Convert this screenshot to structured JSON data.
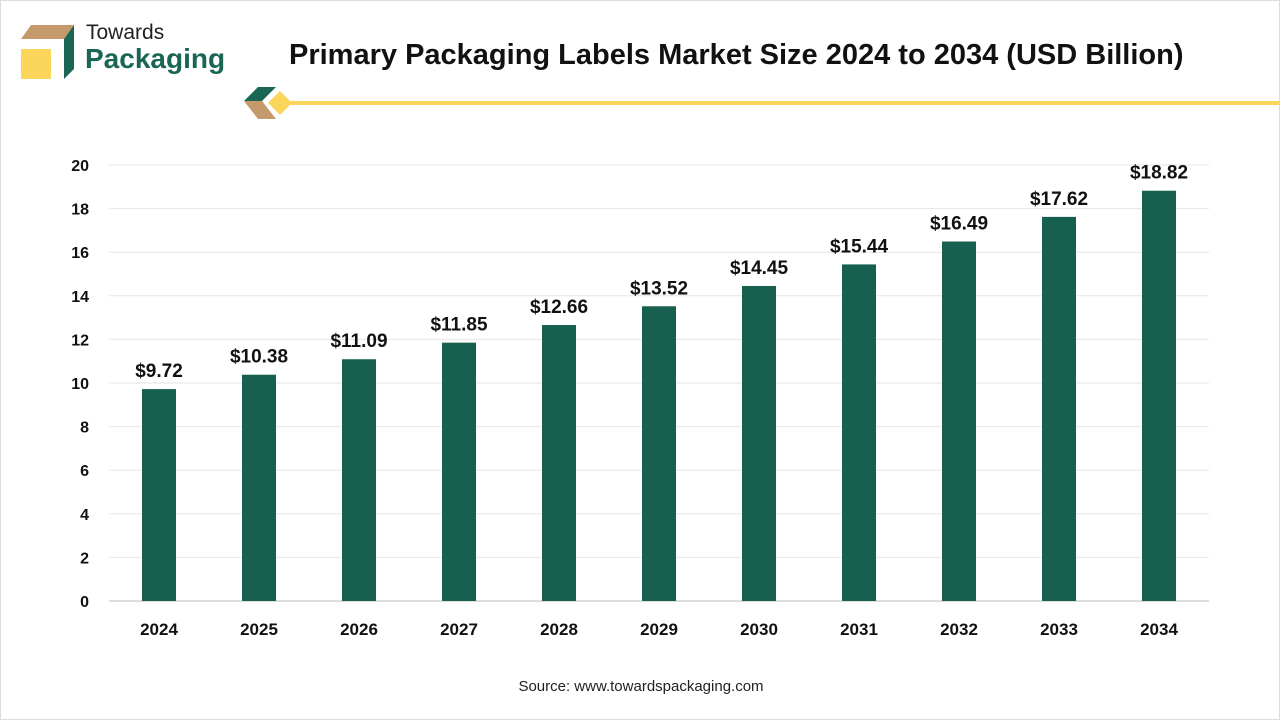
{
  "brand": {
    "line1": "Towards",
    "line2": "Packaging",
    "colors": {
      "green": "#1a6655",
      "tan": "#c49a6c",
      "yellow": "#fcd55b"
    }
  },
  "title": "Primary Packaging Labels Market Size 2024 to 2034 (USD Billion)",
  "source": "Source: www.towardspackaging.com",
  "chart_data": {
    "type": "bar",
    "title": "Primary Packaging Labels Market Size 2024 to 2034 (USD Billion)",
    "categories": [
      "2024",
      "2025",
      "2026",
      "2027",
      "2028",
      "2029",
      "2030",
      "2031",
      "2032",
      "2033",
      "2034"
    ],
    "values": [
      9.72,
      10.38,
      11.09,
      11.85,
      12.66,
      13.52,
      14.45,
      15.44,
      16.49,
      17.62,
      18.82
    ],
    "labels": [
      "$9.72",
      "$10.38",
      "$11.09",
      "$11.85",
      "$12.66",
      "$13.52",
      "$14.45",
      "$15.44",
      "$16.49",
      "$17.62",
      "$18.82"
    ],
    "yticks": [
      "0",
      "2",
      "4",
      "6",
      "8",
      "10",
      "12",
      "14",
      "16",
      "18",
      "20"
    ],
    "ylim": [
      0,
      20
    ],
    "grid": true,
    "bar_color": "#17604f"
  }
}
